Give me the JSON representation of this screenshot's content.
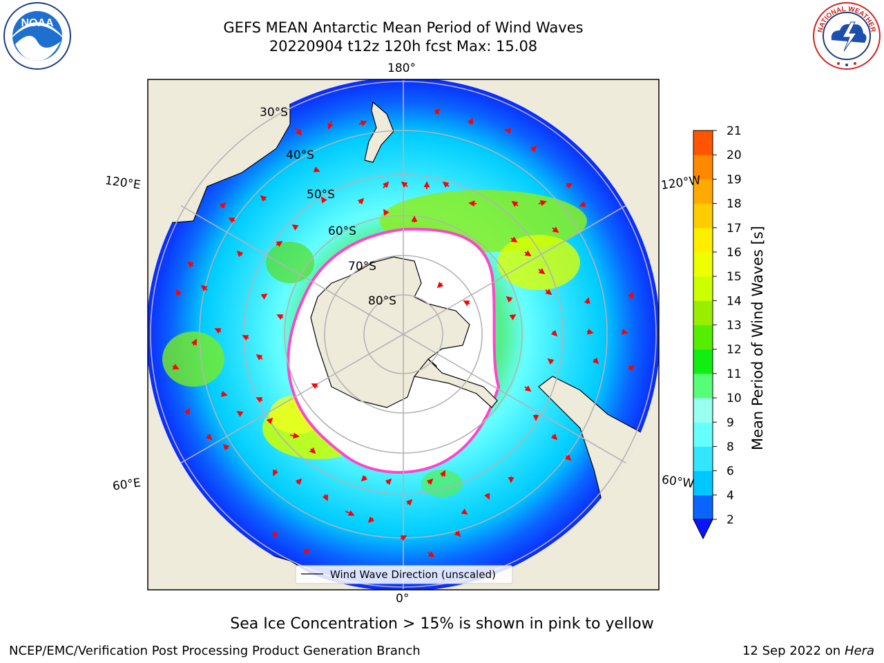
{
  "title": {
    "line1": "GEFS MEAN Antarctic Mean Period of Wind Waves",
    "line2": "20220904 t12z 120h fcst   Max: 15.08"
  },
  "logos": {
    "left": {
      "icon": "noaa-logo",
      "text": "NOAA"
    },
    "right": {
      "icon": "national-weather-service-logo",
      "text": "NATIONAL WEATHER SERVICE"
    }
  },
  "map": {
    "longitude_labels": {
      "top": "180°",
      "bottom": "0°",
      "left_upper": "120°E",
      "left_lower": "60°E",
      "right_upper": "120°W",
      "right_lower": "60°W"
    },
    "latitude_labels": [
      "30°S",
      "40°S",
      "50°S",
      "60°S",
      "70°S",
      "80°S"
    ],
    "legend": "Wind Wave Direction (unscaled)"
  },
  "colorbar": {
    "title": "Mean Period of Wind Waves [s]",
    "ticks": [
      "2",
      "4",
      "6",
      "8",
      "9",
      "10",
      "11",
      "12",
      "13",
      "14",
      "15",
      "16",
      "17",
      "18",
      "19",
      "20",
      "21"
    ],
    "colors": [
      "#0a64ff",
      "#00c8ff",
      "#33e6ff",
      "#66ffff",
      "#99ffee",
      "#55ff77",
      "#11ee11",
      "#55ee00",
      "#99ee00",
      "#ccff00",
      "#eeff00",
      "#ffee00",
      "#ffcc00",
      "#ffaa00",
      "#ff8800",
      "#ff5500",
      "#ff2200",
      "#ff0000"
    ],
    "extend_color": "#0a14ff"
  },
  "caption": "Sea Ice Concentration > 15% is shown in pink to yellow",
  "footer": {
    "left": "NCEP/EMC/Verification Post Processing Product Generation Branch",
    "right_date": "12 Sep 2022 on",
    "right_host": "Hera"
  }
}
